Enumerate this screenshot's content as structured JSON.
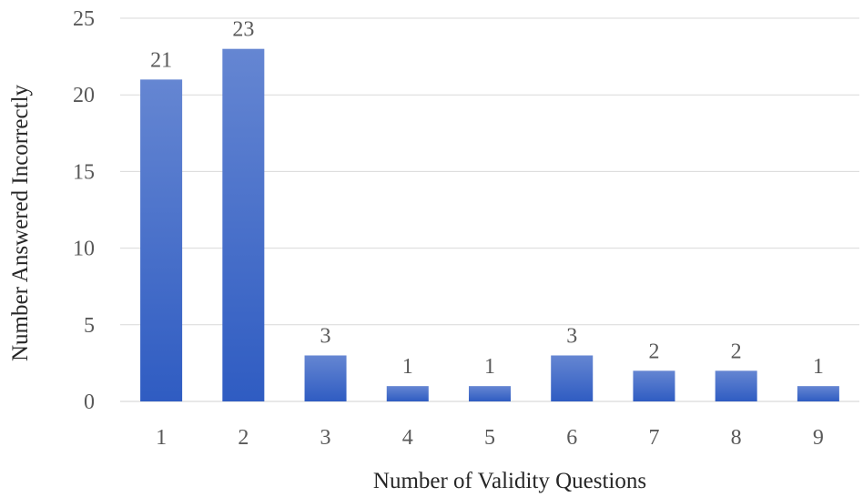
{
  "chart_data": {
    "type": "bar",
    "categories": [
      "1",
      "2",
      "3",
      "4",
      "5",
      "6",
      "7",
      "8",
      "9"
    ],
    "values": [
      21,
      23,
      3,
      1,
      1,
      3,
      2,
      2,
      1
    ],
    "data_labels": [
      "21",
      "23",
      "3",
      "1",
      "1",
      "3",
      "2",
      "2",
      "1"
    ],
    "title": "",
    "xlabel": "Number of Validity Questions",
    "ylabel": "Number Answered Incorrectly",
    "ylim": [
      0,
      25
    ],
    "yticks": [
      0,
      5,
      10,
      15,
      20,
      25
    ],
    "ytick_labels": [
      "0",
      "5",
      "10",
      "15",
      "20",
      "25"
    ],
    "grid": true,
    "legend": "none",
    "colors": {
      "bar_top": "#6586d2",
      "bar_bottom": "#2f5cc2",
      "gridline": "#d9d9d9"
    }
  }
}
